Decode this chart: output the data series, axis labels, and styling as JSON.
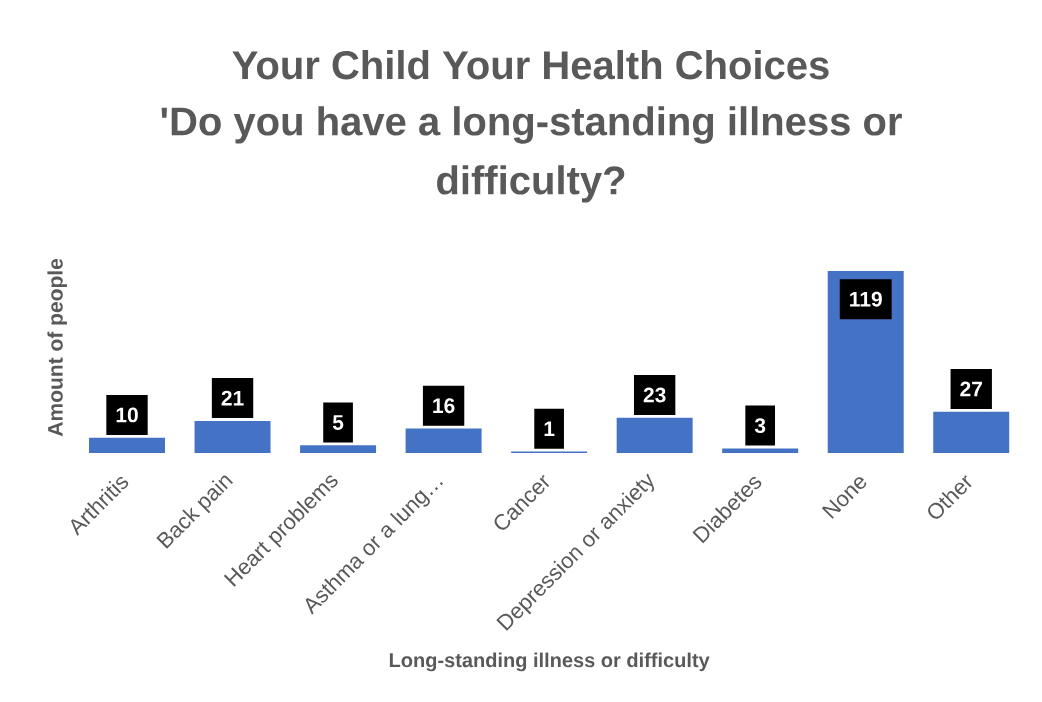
{
  "chart_data": {
    "type": "bar",
    "title": "Your Child Your Health Choices",
    "subtitle": "'Do you have a long-standing illness or difficulty?",
    "xlabel": "Long-standing illness or difficulty",
    "ylabel": "Amount of people",
    "categories": [
      "Arthritis",
      "Back pain",
      "Heart problems",
      "Asthma or a lung…",
      "Cancer",
      "Depression or anxiety",
      "Diabetes",
      "None",
      "Other"
    ],
    "values": [
      10,
      21,
      5,
      16,
      1,
      23,
      3,
      119,
      27
    ],
    "color": "#4472c4",
    "data_labels": true
  }
}
